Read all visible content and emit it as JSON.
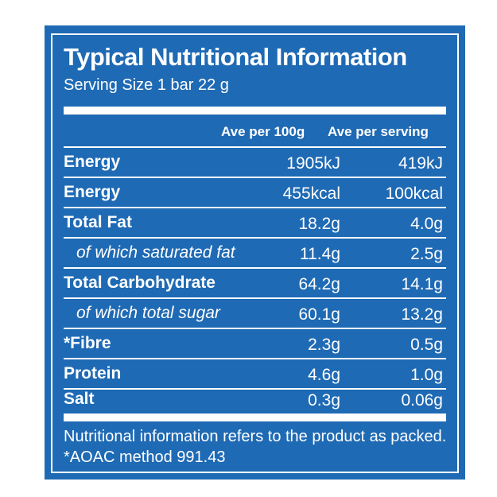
{
  "label": {
    "title": "Typical Nutritional Information",
    "serving_size": "Serving Size 1 bar 22 g",
    "col_per_100g": "Ave per 100g",
    "col_per_serving": "Ave per serving",
    "rows": [
      {
        "name": "Energy",
        "per_100g": "1905kJ",
        "per_serving": "419kJ",
        "sub": false
      },
      {
        "name": "Energy",
        "per_100g": "455kcal",
        "per_serving": "100kcal",
        "sub": false
      },
      {
        "name": "Total Fat",
        "per_100g": "18.2g",
        "per_serving": "4.0g",
        "sub": false
      },
      {
        "name": "of which saturated fat",
        "per_100g": "11.4g",
        "per_serving": "2.5g",
        "sub": true
      },
      {
        "name": "Total Carbohydrate",
        "per_100g": "64.2g",
        "per_serving": "14.1g",
        "sub": false
      },
      {
        "name": "of which total sugar",
        "per_100g": "60.1g",
        "per_serving": "13.2g",
        "sub": true
      },
      {
        "name": "*Fibre",
        "per_100g": "2.3g",
        "per_serving": "0.5g",
        "sub": false
      },
      {
        "name": "Protein",
        "per_100g": "4.6g",
        "per_serving": "1.0g",
        "sub": false
      },
      {
        "name": "Salt",
        "per_100g": "0.3g",
        "per_serving": "0.06g",
        "sub": false
      }
    ],
    "footnote": "Nutritional information refers to the product as packed. *AOAC method 991.43"
  },
  "colors": {
    "panel": "#1f6ab4",
    "text": "#ffffff"
  }
}
